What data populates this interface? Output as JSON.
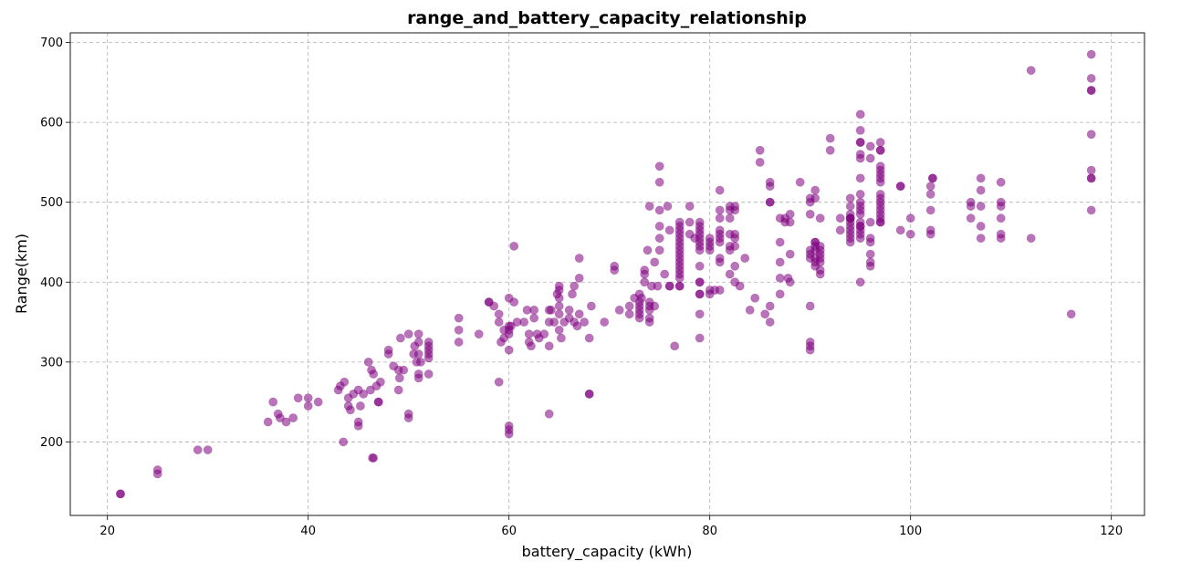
{
  "chart_data": {
    "type": "scatter",
    "title": "range_and_battery_capacity_relationship",
    "xlabel": "battery_capacity (kWh)",
    "ylabel": "Range(km)",
    "xlim": [
      16.3,
      123.3
    ],
    "ylim": [
      108,
      712
    ],
    "xticks": [
      20,
      40,
      60,
      80,
      100,
      120
    ],
    "yticks": [
      200,
      300,
      400,
      500,
      600,
      700
    ],
    "grid": true,
    "marker_color": "#800080",
    "marker_opacity": 0.55,
    "points": [
      [
        21.3,
        135
      ],
      [
        21.3,
        135
      ],
      [
        25,
        160
      ],
      [
        25,
        165
      ],
      [
        29,
        190
      ],
      [
        30,
        190
      ],
      [
        36,
        225
      ],
      [
        36.5,
        250
      ],
      [
        37,
        235
      ],
      [
        37.2,
        230
      ],
      [
        37.8,
        225
      ],
      [
        38.5,
        230
      ],
      [
        39,
        255
      ],
      [
        40,
        255
      ],
      [
        40,
        245
      ],
      [
        41,
        250
      ],
      [
        43,
        265
      ],
      [
        43.2,
        270
      ],
      [
        43.5,
        200
      ],
      [
        43.6,
        275
      ],
      [
        44,
        255
      ],
      [
        44,
        245
      ],
      [
        44.2,
        240
      ],
      [
        44.5,
        260
      ],
      [
        45,
        225
      ],
      [
        45,
        220
      ],
      [
        45,
        265
      ],
      [
        45.2,
        245
      ],
      [
        45.5,
        260
      ],
      [
        46,
        300
      ],
      [
        46.2,
        265
      ],
      [
        46.3,
        290
      ],
      [
        46.4,
        180
      ],
      [
        46.5,
        180
      ],
      [
        46.5,
        285
      ],
      [
        46.8,
        270
      ],
      [
        47,
        250
      ],
      [
        47,
        250
      ],
      [
        47.2,
        275
      ],
      [
        48,
        315
      ],
      [
        48,
        310
      ],
      [
        48.5,
        295
      ],
      [
        49,
        290
      ],
      [
        49,
        265
      ],
      [
        49.1,
        280
      ],
      [
        49.2,
        330
      ],
      [
        49.5,
        290
      ],
      [
        50,
        335
      ],
      [
        50,
        235
      ],
      [
        50,
        230
      ],
      [
        50.5,
        310
      ],
      [
        50.6,
        320
      ],
      [
        50.8,
        300
      ],
      [
        51,
        335
      ],
      [
        51,
        285
      ],
      [
        51,
        280
      ],
      [
        51,
        310
      ],
      [
        51,
        325
      ],
      [
        51.2,
        300
      ],
      [
        52,
        325
      ],
      [
        52,
        320
      ],
      [
        52,
        315
      ],
      [
        52,
        305
      ],
      [
        52,
        285
      ],
      [
        52,
        310
      ],
      [
        55,
        355
      ],
      [
        55,
        340
      ],
      [
        55,
        325
      ],
      [
        57,
        335
      ],
      [
        58,
        375
      ],
      [
        58,
        375
      ],
      [
        58.5,
        370
      ],
      [
        59,
        360
      ],
      [
        59,
        350
      ],
      [
        59,
        275
      ],
      [
        59.2,
        325
      ],
      [
        59.5,
        330
      ],
      [
        59.5,
        340
      ],
      [
        60,
        380
      ],
      [
        60,
        345
      ],
      [
        60,
        340
      ],
      [
        60,
        335
      ],
      [
        60,
        315
      ],
      [
        60,
        220
      ],
      [
        60,
        215
      ],
      [
        60,
        210
      ],
      [
        60.2,
        345
      ],
      [
        60.5,
        445
      ],
      [
        60.5,
        375
      ],
      [
        60.8,
        350
      ],
      [
        61.5,
        350
      ],
      [
        61.8,
        365
      ],
      [
        62,
        335
      ],
      [
        62,
        325
      ],
      [
        62.2,
        320
      ],
      [
        62.5,
        355
      ],
      [
        62.5,
        365
      ],
      [
        62.8,
        335
      ],
      [
        63,
        330
      ],
      [
        63.5,
        335
      ],
      [
        64,
        235
      ],
      [
        64,
        320
      ],
      [
        64,
        350
      ],
      [
        64,
        365
      ],
      [
        64.2,
        365
      ],
      [
        64.5,
        350
      ],
      [
        64.8,
        385
      ],
      [
        65,
        390
      ],
      [
        65,
        395
      ],
      [
        65,
        380
      ],
      [
        65,
        370
      ],
      [
        65,
        360
      ],
      [
        65,
        340
      ],
      [
        65.2,
        330
      ],
      [
        65.5,
        350
      ],
      [
        66,
        355
      ],
      [
        66,
        365
      ],
      [
        66.3,
        385
      ],
      [
        66.5,
        395
      ],
      [
        66.5,
        350
      ],
      [
        66.8,
        345
      ],
      [
        67,
        430
      ],
      [
        67,
        405
      ],
      [
        67,
        360
      ],
      [
        67.5,
        350
      ],
      [
        68,
        260
      ],
      [
        68,
        260
      ],
      [
        68,
        330
      ],
      [
        68.2,
        370
      ],
      [
        69.5,
        350
      ],
      [
        70.5,
        415
      ],
      [
        70.5,
        420
      ],
      [
        71,
        365
      ],
      [
        72,
        360
      ],
      [
        72,
        370
      ],
      [
        72.5,
        380
      ],
      [
        73,
        385
      ],
      [
        73,
        375
      ],
      [
        73,
        370
      ],
      [
        73,
        365
      ],
      [
        73,
        360
      ],
      [
        73,
        355
      ],
      [
        73.2,
        380
      ],
      [
        73.5,
        415
      ],
      [
        73.5,
        410
      ],
      [
        73.5,
        400
      ],
      [
        73.8,
        440
      ],
      [
        74,
        375
      ],
      [
        74,
        370
      ],
      [
        74,
        365
      ],
      [
        74,
        355
      ],
      [
        74,
        350
      ],
      [
        74,
        495
      ],
      [
        74.2,
        395
      ],
      [
        74.5,
        425
      ],
      [
        74.5,
        370
      ],
      [
        74.8,
        395
      ],
      [
        75,
        545
      ],
      [
        75,
        525
      ],
      [
        75,
        490
      ],
      [
        75,
        470
      ],
      [
        75,
        455
      ],
      [
        75,
        440
      ],
      [
        75.5,
        410
      ],
      [
        75.8,
        495
      ],
      [
        76,
        465
      ],
      [
        76,
        395
      ],
      [
        76,
        395
      ],
      [
        76.5,
        320
      ],
      [
        77,
        475
      ],
      [
        77,
        470
      ],
      [
        77,
        465
      ],
      [
        77,
        460
      ],
      [
        77,
        455
      ],
      [
        77,
        450
      ],
      [
        77,
        445
      ],
      [
        77,
        440
      ],
      [
        77,
        435
      ],
      [
        77,
        430
      ],
      [
        77,
        425
      ],
      [
        77,
        420
      ],
      [
        77,
        415
      ],
      [
        77,
        410
      ],
      [
        77,
        405
      ],
      [
        77,
        395
      ],
      [
        77,
        395
      ],
      [
        78,
        495
      ],
      [
        78,
        475
      ],
      [
        78,
        460
      ],
      [
        78.5,
        455
      ],
      [
        79,
        475
      ],
      [
        79,
        470
      ],
      [
        79,
        465
      ],
      [
        79,
        460
      ],
      [
        79,
        455
      ],
      [
        79,
        450
      ],
      [
        79,
        445
      ],
      [
        79,
        440
      ],
      [
        79,
        420
      ],
      [
        79,
        400
      ],
      [
        79,
        400
      ],
      [
        79,
        385
      ],
      [
        79,
        385
      ],
      [
        79,
        360
      ],
      [
        79,
        330
      ],
      [
        80,
        455
      ],
      [
        80,
        450
      ],
      [
        80,
        445
      ],
      [
        80,
        440
      ],
      [
        80,
        390
      ],
      [
        80,
        385
      ],
      [
        80.5,
        390
      ],
      [
        81,
        515
      ],
      [
        81,
        490
      ],
      [
        81,
        480
      ],
      [
        81,
        465
      ],
      [
        81,
        460
      ],
      [
        81,
        455
      ],
      [
        81,
        450
      ],
      [
        81,
        430
      ],
      [
        81,
        425
      ],
      [
        81,
        390
      ],
      [
        82,
        495
      ],
      [
        82,
        490
      ],
      [
        82,
        480
      ],
      [
        82,
        460
      ],
      [
        82,
        445
      ],
      [
        82,
        440
      ],
      [
        82,
        410
      ],
      [
        82.5,
        495
      ],
      [
        82.5,
        490
      ],
      [
        82.5,
        460
      ],
      [
        82.5,
        455
      ],
      [
        82.5,
        445
      ],
      [
        82.5,
        420
      ],
      [
        82.5,
        400
      ],
      [
        83,
        395
      ],
      [
        83.5,
        430
      ],
      [
        84,
        365
      ],
      [
        84.5,
        380
      ],
      [
        85,
        565
      ],
      [
        85,
        550
      ],
      [
        85.5,
        360
      ],
      [
        86,
        525
      ],
      [
        86,
        520
      ],
      [
        86,
        500
      ],
      [
        86,
        500
      ],
      [
        86,
        370
      ],
      [
        86,
        350
      ],
      [
        87,
        480
      ],
      [
        87,
        450
      ],
      [
        87,
        425
      ],
      [
        87,
        405
      ],
      [
        87,
        385
      ],
      [
        87.5,
        480
      ],
      [
        87.5,
        475
      ],
      [
        87.8,
        405
      ],
      [
        88,
        485
      ],
      [
        88,
        475
      ],
      [
        88,
        435
      ],
      [
        88,
        400
      ],
      [
        89,
        525
      ],
      [
        90,
        505
      ],
      [
        90,
        500
      ],
      [
        90,
        485
      ],
      [
        90,
        440
      ],
      [
        90,
        435
      ],
      [
        90,
        430
      ],
      [
        90,
        370
      ],
      [
        90,
        325
      ],
      [
        90,
        320
      ],
      [
        90,
        315
      ],
      [
        90.5,
        515
      ],
      [
        90.5,
        505
      ],
      [
        90.5,
        445
      ],
      [
        90.5,
        440
      ],
      [
        90.5,
        430
      ],
      [
        90.5,
        425
      ],
      [
        90.5,
        420
      ],
      [
        90.5,
        450
      ],
      [
        90.5,
        450
      ],
      [
        91,
        480
      ],
      [
        91,
        445
      ],
      [
        91,
        440
      ],
      [
        91,
        435
      ],
      [
        91,
        430
      ],
      [
        91,
        425
      ],
      [
        91,
        415
      ],
      [
        91,
        410
      ],
      [
        92,
        580
      ],
      [
        92,
        565
      ],
      [
        93,
        480
      ],
      [
        93,
        465
      ],
      [
        94,
        505
      ],
      [
        94,
        495
      ],
      [
        94,
        485
      ],
      [
        94,
        480
      ],
      [
        94,
        475
      ],
      [
        94,
        470
      ],
      [
        94,
        465
      ],
      [
        94,
        460
      ],
      [
        94,
        455
      ],
      [
        94,
        450
      ],
      [
        94,
        480
      ],
      [
        94,
        480
      ],
      [
        95,
        610
      ],
      [
        95,
        590
      ],
      [
        95,
        575
      ],
      [
        95,
        575
      ],
      [
        95,
        560
      ],
      [
        95,
        555
      ],
      [
        95,
        530
      ],
      [
        95,
        510
      ],
      [
        95,
        500
      ],
      [
        95,
        495
      ],
      [
        95,
        490
      ],
      [
        95,
        485
      ],
      [
        95,
        475
      ],
      [
        95,
        470
      ],
      [
        95,
        470
      ],
      [
        95,
        465
      ],
      [
        95,
        460
      ],
      [
        95,
        455
      ],
      [
        95,
        400
      ],
      [
        96,
        570
      ],
      [
        96,
        555
      ],
      [
        96,
        475
      ],
      [
        96,
        455
      ],
      [
        96,
        450
      ],
      [
        96,
        435
      ],
      [
        96,
        425
      ],
      [
        96,
        420
      ],
      [
        97,
        575
      ],
      [
        97,
        565
      ],
      [
        97,
        565
      ],
      [
        97,
        545
      ],
      [
        97,
        540
      ],
      [
        97,
        535
      ],
      [
        97,
        530
      ],
      [
        97,
        525
      ],
      [
        97,
        510
      ],
      [
        97,
        505
      ],
      [
        97,
        500
      ],
      [
        97,
        495
      ],
      [
        97,
        490
      ],
      [
        97,
        485
      ],
      [
        97,
        480
      ],
      [
        97,
        475
      ],
      [
        97,
        475
      ],
      [
        99,
        520
      ],
      [
        99,
        520
      ],
      [
        99,
        465
      ],
      [
        100,
        480
      ],
      [
        100,
        460
      ],
      [
        102,
        520
      ],
      [
        102,
        510
      ],
      [
        102,
        490
      ],
      [
        102,
        465
      ],
      [
        102,
        460
      ],
      [
        102.2,
        530
      ],
      [
        102.2,
        530
      ],
      [
        106,
        500
      ],
      [
        106,
        495
      ],
      [
        106,
        480
      ],
      [
        107,
        530
      ],
      [
        107,
        515
      ],
      [
        107,
        495
      ],
      [
        107,
        470
      ],
      [
        107,
        455
      ],
      [
        109,
        525
      ],
      [
        109,
        500
      ],
      [
        109,
        495
      ],
      [
        109,
        480
      ],
      [
        109,
        460
      ],
      [
        109,
        455
      ],
      [
        112,
        665
      ],
      [
        112,
        455
      ],
      [
        116,
        360
      ],
      [
        118,
        685
      ],
      [
        118,
        655
      ],
      [
        118,
        640
      ],
      [
        118,
        640
      ],
      [
        118,
        585
      ],
      [
        118,
        540
      ],
      [
        118,
        530
      ],
      [
        118,
        530
      ],
      [
        118,
        490
      ]
    ]
  }
}
